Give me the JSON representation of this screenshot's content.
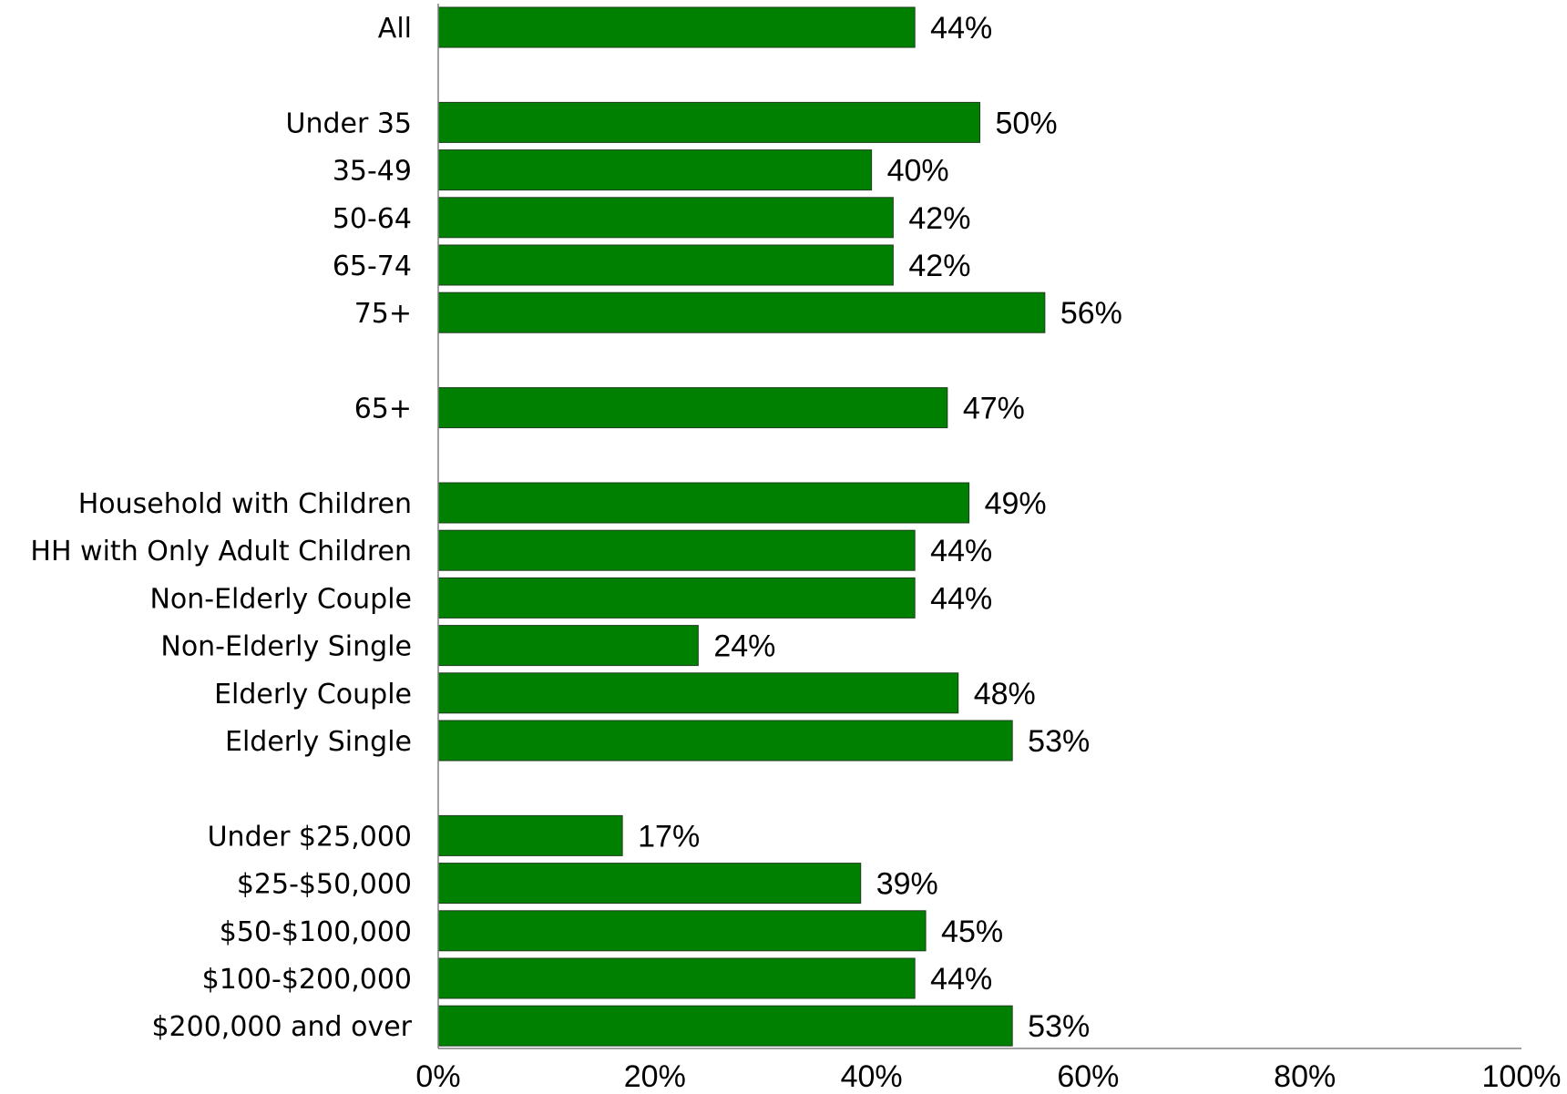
{
  "chart_data": {
    "type": "bar",
    "orientation": "horizontal",
    "title": "",
    "xlabel": "",
    "ylabel": "",
    "xlim": [
      0,
      100
    ],
    "x_ticks": [
      "0%",
      "20%",
      "40%",
      "60%",
      "80%",
      "100%"
    ],
    "grid": false,
    "legend": "none",
    "bar_color": "#008000",
    "groups": [
      {
        "categories": [
          "All"
        ],
        "values": [
          44
        ]
      },
      {
        "categories": [
          "Under 35",
          "35-49",
          "50-64",
          "65-74",
          "75+"
        ],
        "values": [
          50,
          40,
          42,
          42,
          56
        ]
      },
      {
        "categories": [
          "65+"
        ],
        "values": [
          47
        ]
      },
      {
        "categories": [
          "Household with Children",
          "HH with Only Adult Children",
          "Non-Elderly Couple",
          "Non-Elderly Single",
          "Elderly Couple",
          "Elderly Single"
        ],
        "values": [
          49,
          44,
          44,
          24,
          48,
          53
        ]
      },
      {
        "categories": [
          "Under $25,000",
          "$25-$50,000",
          "$50-$100,000",
          "$100-$200,000",
          "$200,000 and over"
        ],
        "values": [
          17,
          39,
          45,
          44,
          53
        ]
      }
    ],
    "data_labels": [
      [
        "44%"
      ],
      [
        "50%",
        "40%",
        "42%",
        "42%",
        "56%"
      ],
      [
        "47%"
      ],
      [
        "49%",
        "44%",
        "44%",
        "24%",
        "48%",
        "53%"
      ],
      [
        "17%",
        "39%",
        "45%",
        "44%",
        "53%"
      ]
    ]
  }
}
